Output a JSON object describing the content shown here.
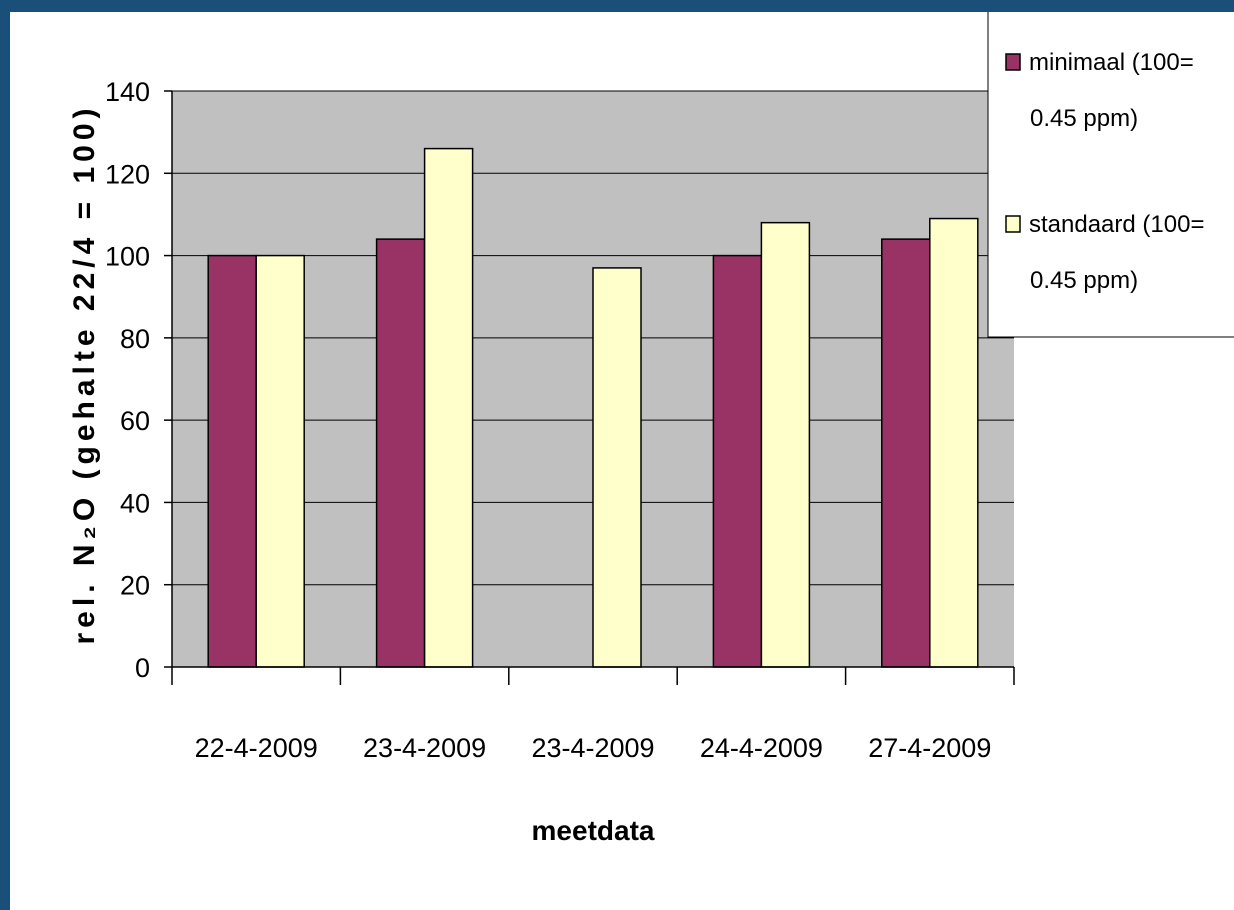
{
  "chart_data": {
    "type": "bar",
    "categories": [
      "22-4-2009",
      "23-4-2009",
      "23-4-2009",
      "24-4-2009",
      "27-4-2009"
    ],
    "series": [
      {
        "name": "minimaal (100= 0.45 ppm)",
        "legend_lines": [
          "minimaal (100=",
          "0.45 ppm)"
        ],
        "color": "#993366",
        "values": [
          100,
          104,
          null,
          100,
          104
        ]
      },
      {
        "name": "standaard  (100= 0.45 ppm)",
        "legend_lines": [
          "standaard  (100=",
          "0.45 ppm)"
        ],
        "color": "#ffffcc",
        "values": [
          100,
          126,
          97,
          108,
          109
        ]
      }
    ],
    "yticks": [
      0,
      20,
      40,
      60,
      80,
      100,
      120,
      140
    ],
    "ylim": [
      0,
      140
    ],
    "xlabel": "meetdata",
    "ylabel": "rel. N₂O  (gehalte 22/4 = 100)",
    "grid": true,
    "plot_background": "#c0c0c0",
    "legend_position": "top-right"
  }
}
